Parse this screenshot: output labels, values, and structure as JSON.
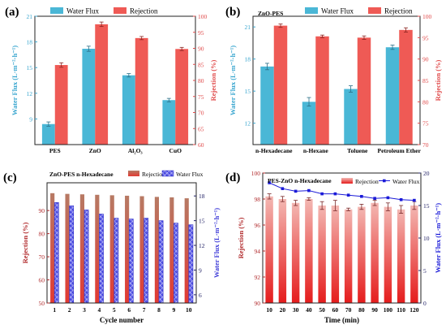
{
  "colors": {
    "flux": "#4ab7d6",
    "rejection": "#ef5a55",
    "flux_axis": "#37a5cf",
    "rejection_axis": "#e04a4a",
    "rejection_bar_c": "#b66a55",
    "flux_bar_c": "#3d3ad8",
    "dark_red_axis": "#b0282a",
    "flux_line_d": "#1a1ad8"
  },
  "chart_data": [
    {
      "id": "a",
      "type": "bar",
      "panel_label": "(a)",
      "categories": [
        "PES",
        "ZnO",
        "Al₂O₃",
        "CuO"
      ],
      "series": [
        {
          "name": "Water Flux",
          "axis": "left",
          "values": [
            8.4,
            17.2,
            14.1,
            11.2
          ],
          "errors": [
            0.25,
            0.3,
            0.2,
            0.2
          ]
        },
        {
          "name": "Rejection",
          "axis": "right",
          "values": [
            84.8,
            97.5,
            93.2,
            89.8
          ],
          "errors": [
            0.7,
            0.7,
            0.5,
            0.5
          ]
        }
      ],
      "ylabel_left": "Water Flux (L·m⁻²·h⁻¹)",
      "ylabel_right": "Rejection (%)",
      "ylim_left": [
        6,
        21
      ],
      "ylim_right": [
        60,
        100
      ],
      "yticks_left": [
        "9",
        "12",
        "15",
        "18",
        "21"
      ],
      "yticks_right": [
        "60",
        "65",
        "70",
        "75",
        "80",
        "85",
        "90",
        "95",
        "100"
      ],
      "legend": "top"
    },
    {
      "id": "b",
      "type": "bar",
      "panel_label": "(b)",
      "annotation": "ZnO-PES",
      "categories": [
        "n-Hexadecane",
        "n-Hexane",
        "Toluene",
        "Petroleum Ether"
      ],
      "series": [
        {
          "name": "Water Flux",
          "axis": "left",
          "values": [
            17.3,
            14.0,
            15.2,
            19.1
          ],
          "errors": [
            0.3,
            0.4,
            0.3,
            0.2
          ]
        },
        {
          "name": "Rejection",
          "axis": "right",
          "values": [
            97.8,
            95.3,
            95.0,
            96.8
          ],
          "errors": [
            0.4,
            0.3,
            0.4,
            0.5
          ]
        }
      ],
      "ylabel_left": "Water Flux (L·m⁻²·h⁻¹)",
      "ylabel_right": "Rejection (%)",
      "ylim_left": [
        10,
        22
      ],
      "ylim_right": [
        70,
        100
      ],
      "yticks_left": [
        "12",
        "15",
        "18",
        "21"
      ],
      "yticks_right": [
        "70",
        "75",
        "80",
        "85",
        "90",
        "95",
        "100"
      ],
      "legend": "top"
    },
    {
      "id": "c",
      "type": "bar",
      "panel_label": "(c)",
      "annotation": "ZnO-PES    n-Hexadecane",
      "categories": [
        "1",
        "2",
        "3",
        "4",
        "5",
        "6",
        "7",
        "8",
        "9",
        "10"
      ],
      "series": [
        {
          "name": "Rejection",
          "axis": "left",
          "values": [
            97.5,
            97.2,
            97.0,
            96.8,
            96.6,
            96.4,
            96.2,
            95.9,
            95.7,
            95.3
          ]
        },
        {
          "name": "Water Flux",
          "axis": "right",
          "values": [
            17.2,
            16.8,
            16.3,
            15.8,
            15.3,
            15.2,
            15.3,
            15.0,
            14.7,
            14.5
          ]
        }
      ],
      "xlabel": "Cycle number",
      "ylabel_left": "Rejection (%)",
      "ylabel_right": "Water Flux (L·m⁻²·h⁻¹)",
      "ylim_left": [
        50,
        102
      ],
      "ylim_right": [
        5,
        19.6
      ],
      "yticks_left": [
        "50",
        "60",
        "70",
        "80",
        "90"
      ],
      "yticks_right": [
        "6",
        "9",
        "12",
        "15",
        "18"
      ],
      "legend": "top"
    },
    {
      "id": "d",
      "type": "bar",
      "panel_label": "(d)",
      "annotation": "PES-ZnO    n-Hexadecane",
      "categories": [
        "10",
        "20",
        "30",
        "40",
        "50",
        "60",
        "70",
        "80",
        "90",
        "100",
        "110",
        "120"
      ],
      "series": [
        {
          "name": "Rejection",
          "axis": "left",
          "values": [
            98.2,
            98.0,
            97.7,
            98.0,
            97.5,
            97.5,
            97.2,
            97.4,
            97.7,
            97.4,
            97.2,
            97.5
          ],
          "errors": [
            0.2,
            0.2,
            0.2,
            0.1,
            0.3,
            0.4,
            0.1,
            0.2,
            0.2,
            0.3,
            0.3,
            0.3
          ]
        },
        {
          "name": "Water Flux",
          "axis": "right",
          "type": "line",
          "values": [
            18.5,
            17.6,
            17.2,
            17.3,
            16.8,
            16.8,
            16.6,
            16.4,
            16.1,
            16.2,
            15.9,
            15.8
          ]
        }
      ],
      "xlabel": "Time (min)",
      "ylabel_left": "Rejection (%)",
      "ylabel_right": "Water Flux (L·m⁻²·h⁻¹)",
      "ylim_left": [
        90,
        100
      ],
      "ylim_right": [
        0,
        20
      ],
      "yticks_left": [
        "90",
        "92",
        "94",
        "96",
        "98",
        "100"
      ],
      "yticks_right": [
        "0",
        "5",
        "10",
        "15",
        "20"
      ],
      "legend": "top"
    }
  ]
}
